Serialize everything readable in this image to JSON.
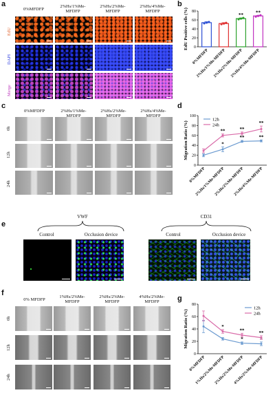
{
  "panels": {
    "a": {
      "label": "a",
      "columns": [
        "0%MFDFP",
        "2%Hs/1%Me-MFDFP",
        "2%Hs/2%Me-MFDFP",
        "2%Hs/4%Me-MFDFP"
      ],
      "rows": [
        "EdU",
        "DAPI",
        "Merge"
      ],
      "row_colors": [
        "#e0602a",
        "#3040e0",
        "#c040c0"
      ]
    },
    "c": {
      "label": "c",
      "columns": [
        "0%MFDFP",
        "2%Hs/1%Me-MFDFP",
        "2%Hs/2%Me-MFDFP",
        "2%Hs/4%Me-MFDFP"
      ],
      "rows": [
        "0h",
        "12h",
        "24h"
      ]
    },
    "e": {
      "label": "e",
      "groups": [
        "VWF",
        "CD31"
      ],
      "subheaders": [
        "Control",
        "Occlusion device",
        "Control",
        "Occlusion device"
      ]
    },
    "f": {
      "label": "f",
      "columns": [
        "0% MFDFP",
        "1%Hs/2%Me-MFDFP",
        "2%Hs/2%Me-MFDFP",
        "4%Hs/2%Me-MFDFP"
      ],
      "rows": [
        "0h",
        "12h",
        "24h"
      ]
    }
  },
  "chart_data": [
    {
      "id": "b",
      "label": "b",
      "type": "bar",
      "ylabel": "EdU Positive cells (%)",
      "ylim": [
        0,
        80
      ],
      "yticks": [
        0,
        20,
        40,
        60,
        80
      ],
      "categories": [
        "0%MFDFP",
        "2%Hs/1%Me-MFDFP",
        "2%Hs/2%Me-MFDFP",
        "2%Hs/4%Me-MFDFP"
      ],
      "values": [
        54,
        52,
        63,
        69
      ],
      "errors": [
        2,
        2,
        1.5,
        1
      ],
      "colors": [
        "#2b4fd4",
        "#e03030",
        "#2aa02a",
        "#c030c0"
      ],
      "annotations": [
        "",
        "",
        "**",
        "**"
      ]
    },
    {
      "id": "d",
      "label": "d",
      "type": "line",
      "ylabel": "Migration Ratio (%)",
      "ylim": [
        0,
        100
      ],
      "yticks": [
        0,
        20,
        40,
        60,
        80,
        100
      ],
      "categories": [
        "0%MFDFP",
        "2%Hs/1%Me-MFDFP",
        "2%Hs/2%Me-MFDFP",
        "2%Hs/4%Me-MFDFP"
      ],
      "series": [
        {
          "name": "12h",
          "values": [
            20,
            32,
            48,
            49
          ],
          "errors": [
            3,
            5,
            2,
            2
          ],
          "color": "#6a9ad0",
          "stars": [
            "",
            "*",
            "**",
            "**"
          ]
        },
        {
          "name": "24h",
          "values": [
            29,
            60,
            64,
            73
          ],
          "errors": [
            4,
            3,
            3,
            6
          ],
          "color": "#d96aa8",
          "stars": [
            "",
            "**",
            "**",
            "**"
          ]
        }
      ],
      "legend": "top-left"
    },
    {
      "id": "g",
      "label": "g",
      "type": "line",
      "ylabel": "Migration Ratio (%)",
      "ylim": [
        0,
        80
      ],
      "yticks": [
        0,
        20,
        40,
        60,
        80
      ],
      "categories": [
        "0%MFDFP",
        "1%Hs/2%Me-MFDFP",
        "2%Hs/2%Me-MFDFP",
        "4%Hs/2%Me-MFDFP"
      ],
      "series": [
        {
          "name": "12h",
          "values": [
            44,
            24,
            17,
            16
          ],
          "errors": [
            10,
            2,
            2,
            3
          ],
          "color": "#6a9ad0",
          "stars": [
            "",
            "",
            "*",
            "*"
          ]
        },
        {
          "name": "24h",
          "values": [
            61,
            36,
            30,
            26
          ],
          "errors": [
            8,
            3,
            3,
            3
          ],
          "color": "#d96aa8",
          "stars": [
            "",
            "*",
            "**",
            "**"
          ]
        }
      ],
      "legend": "top-right"
    }
  ]
}
